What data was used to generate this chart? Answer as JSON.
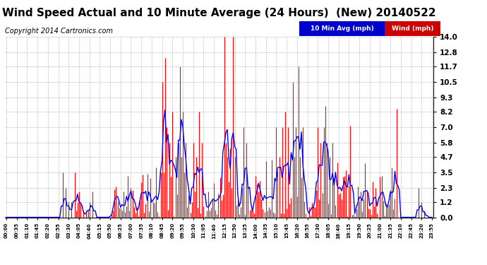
{
  "title": "Wind Speed Actual and 10 Minute Average (24 Hours)  (New) 20140522",
  "copyright": "Copyright 2014 Cartronics.com",
  "legend_avg_label": "10 Min Avg (mph)",
  "legend_wind_label": "Wind (mph)",
  "legend_avg_bg": "#0000cc",
  "legend_wind_bg": "#cc0000",
  "yticks": [
    0.0,
    1.2,
    2.3,
    3.5,
    4.7,
    5.8,
    7.0,
    8.2,
    9.3,
    10.5,
    11.7,
    12.8,
    14.0
  ],
  "ymax": 14.0,
  "ymin": 0.0,
  "bg_color": "#ffffff",
  "plot_bg_color": "#ffffff",
  "grid_color": "#999999",
  "title_fontsize": 11,
  "copyright_fontsize": 7,
  "wind_color": "#ff0000",
  "avg_color": "#0000ff",
  "num_points": 288,
  "minutes_per_point": 5,
  "tick_interval_minutes": 35
}
